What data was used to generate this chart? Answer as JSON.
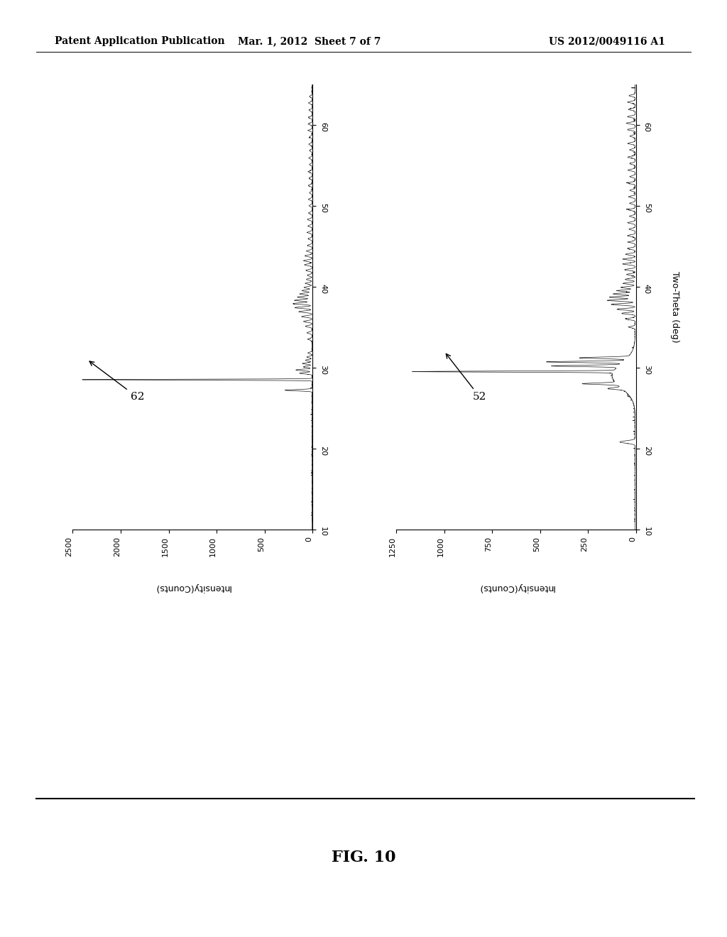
{
  "header_left": "Patent Application Publication",
  "header_mid": "Mar. 1, 2012  Sheet 7 of 7",
  "header_right": "US 2012/0049116 A1",
  "fig_label": "FIG. 10",
  "plot1_label": "62",
  "plot2_label": "52",
  "ylabel1": "Intensity(Counts)",
  "ylabel2": "Intensity(Counts)",
  "xlabel_rotated": "Two-Theta (deg)",
  "xlim": [
    10,
    65
  ],
  "ylim1": [
    0,
    2500
  ],
  "ylim2": [
    0,
    1250
  ],
  "yticks1": [
    0,
    500,
    1000,
    1500,
    2000,
    2500
  ],
  "yticks2": [
    0,
    250,
    500,
    750,
    1000,
    1250
  ],
  "xticks": [
    10,
    20,
    30,
    40,
    50,
    60
  ],
  "bg_color": "#ffffff",
  "line_color": "#1a1a1a",
  "header_fontsize": 10,
  "fig_label_fontsize": 16,
  "axis_label_fontsize": 9,
  "tick_fontsize": 8,
  "annot_fontsize": 11
}
